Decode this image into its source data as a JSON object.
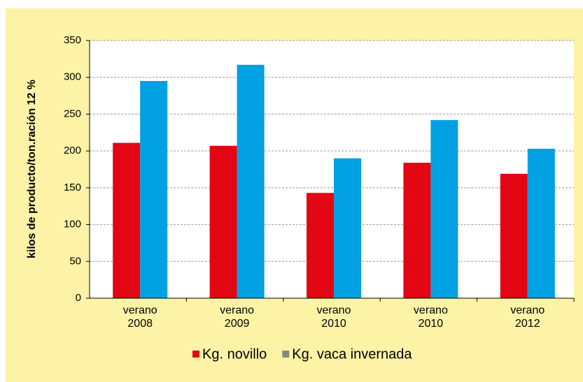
{
  "chart_data": {
    "type": "bar",
    "y_label": "kilos de producto/ton.ración 12 %",
    "categories": [
      "verano 2008",
      "verano 2009",
      "verano 2010",
      "verano 2010",
      "verano 2012"
    ],
    "series": [
      {
        "name": "Kg. novillo",
        "color": "#e30613",
        "values": [
          211,
          207,
          143,
          184,
          169
        ]
      },
      {
        "name": "Kg. vaca invernada",
        "color": "#00a0e3",
        "legend_color": "#888888",
        "values": [
          295,
          317,
          190,
          242,
          203
        ]
      }
    ],
    "ylim": [
      0,
      350
    ],
    "yticks": [
      0,
      50,
      100,
      150,
      200,
      250,
      300,
      350
    ],
    "grid": true
  }
}
